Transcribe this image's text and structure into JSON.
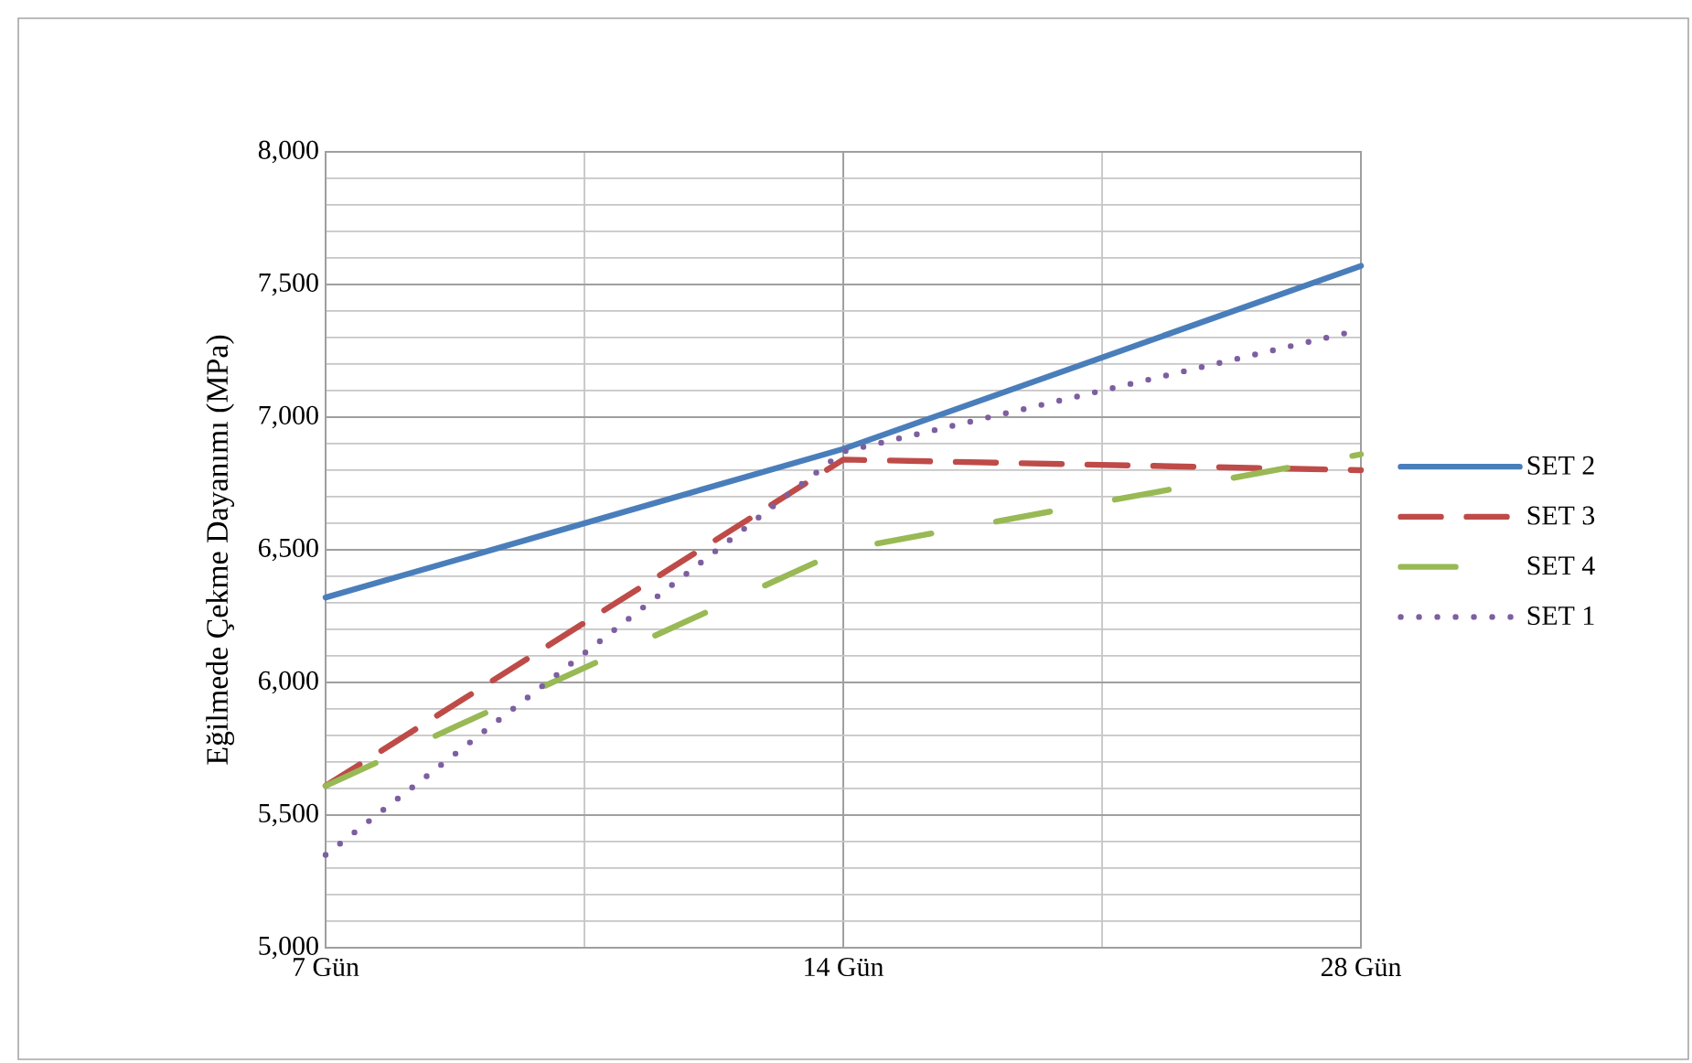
{
  "chart_data": {
    "type": "line",
    "ylabel": "Eğilmede Çekme Dayanımı (MPa)",
    "categories": [
      "7 Gün",
      "14 Gün",
      "28 Gün"
    ],
    "series": [
      {
        "name": "SET 2",
        "color": "#4a7ebb",
        "line_style": "solid",
        "values": [
          6320,
          6880,
          7570
        ]
      },
      {
        "name": "SET 3",
        "color": "#be4b48",
        "line_style": "dashed",
        "values": [
          5610,
          6840,
          6800
        ]
      },
      {
        "name": "SET 4",
        "color": "#98b954",
        "line_style": "dashdot",
        "values": [
          5610,
          6500,
          6860
        ]
      },
      {
        "name": "SET 1",
        "color": "#7d5fa0",
        "line_style": "dotted",
        "values": [
          5350,
          6870,
          7330
        ]
      }
    ],
    "ylim": [
      5000,
      8000
    ],
    "yticks": [
      {
        "value": 5000,
        "label": "5,000"
      },
      {
        "value": 5500,
        "label": "5,500"
      },
      {
        "value": 6000,
        "label": "6,000"
      },
      {
        "value": 6500,
        "label": "6,500"
      },
      {
        "value": 7000,
        "label": "7,000"
      },
      {
        "value": 7500,
        "label": "7,500"
      },
      {
        "value": 8000,
        "label": "8,000"
      }
    ],
    "grid": true,
    "legend": "right",
    "marker": "none"
  }
}
